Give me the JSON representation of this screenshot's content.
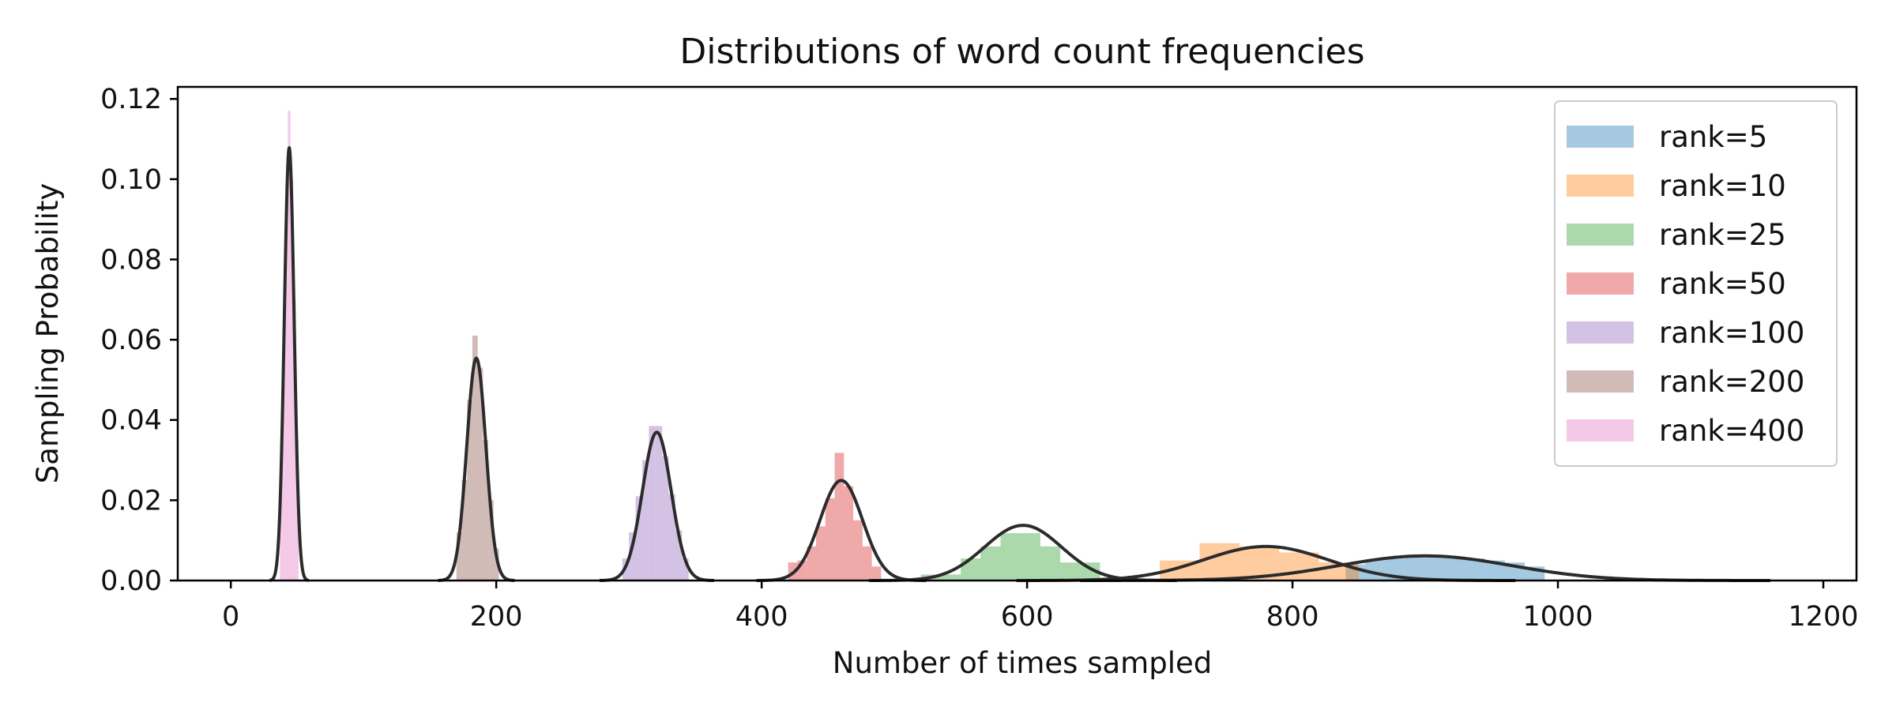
{
  "chart_data": {
    "type": "histogram",
    "title": "Distributions of word count frequencies",
    "xlabel": "Number of times sampled",
    "ylabel": "Sampling Probability",
    "xlim": [
      -40,
      1225
    ],
    "ylim": [
      0,
      0.123
    ],
    "x_ticks": [
      0,
      200,
      400,
      600,
      800,
      1000,
      1200
    ],
    "x_tick_labels": [
      "0",
      "200",
      "400",
      "600",
      "800",
      "1000",
      "1200"
    ],
    "y_ticks": [
      0,
      0.02,
      0.04,
      0.06,
      0.08,
      0.1,
      0.12
    ],
    "y_tick_labels": [
      "0.00",
      "0.02",
      "0.04",
      "0.06",
      "0.08",
      "0.10",
      "0.12"
    ],
    "grid": false,
    "legend_position": "top-right",
    "kde_color": "#2b2b2b",
    "series": [
      {
        "name": "rank=5",
        "color": "#1f77b4",
        "kde": {
          "mean": 900,
          "sd": 65
        },
        "bins": [
          [
            840,
            855,
            0.004
          ],
          [
            855,
            870,
            0.005
          ],
          [
            870,
            885,
            0.0055
          ],
          [
            885,
            900,
            0.006
          ],
          [
            900,
            915,
            0.006
          ],
          [
            915,
            930,
            0.006
          ],
          [
            930,
            945,
            0.0055
          ],
          [
            945,
            960,
            0.005
          ],
          [
            960,
            975,
            0.0045
          ],
          [
            975,
            990,
            0.0035
          ]
        ]
      },
      {
        "name": "rank=10",
        "color": "#ff7f0e",
        "kde": {
          "mean": 780,
          "sd": 47
        },
        "bins": [
          [
            700,
            730,
            0.005
          ],
          [
            730,
            760,
            0.0093
          ],
          [
            760,
            790,
            0.0085
          ],
          [
            790,
            820,
            0.007
          ],
          [
            820,
            850,
            0.0045
          ]
        ]
      },
      {
        "name": "rank=25",
        "color": "#2ca02c",
        "kde": {
          "mean": 597,
          "sd": 29
        },
        "bins": [
          [
            520,
            535,
            0.0015
          ],
          [
            535,
            550,
            0.0015
          ],
          [
            550,
            565,
            0.0055
          ],
          [
            565,
            580,
            0.0085
          ],
          [
            580,
            595,
            0.0118
          ],
          [
            595,
            610,
            0.0118
          ],
          [
            610,
            625,
            0.0085
          ],
          [
            625,
            640,
            0.0045
          ],
          [
            640,
            655,
            0.0045
          ]
        ]
      },
      {
        "name": "rank=50",
        "color": "#d62728",
        "kde": {
          "mean": 460,
          "sd": 16
        },
        "bins": [
          [
            420,
            427,
            0.0045
          ],
          [
            427,
            434,
            0.005
          ],
          [
            434,
            441,
            0.0085
          ],
          [
            441,
            448,
            0.0135
          ],
          [
            448,
            455,
            0.0205
          ],
          [
            455,
            462,
            0.0318
          ],
          [
            462,
            469,
            0.0235
          ],
          [
            469,
            476,
            0.015
          ],
          [
            476,
            483,
            0.0085
          ],
          [
            483,
            490,
            0.0035
          ]
        ]
      },
      {
        "name": "rank=100",
        "color": "#9467bd",
        "kde": {
          "mean": 321,
          "sd": 10.8
        },
        "bins": [
          [
            295,
            300,
            0.0055
          ],
          [
            300,
            305,
            0.012
          ],
          [
            305,
            310,
            0.021
          ],
          [
            310,
            315,
            0.03
          ],
          [
            315,
            320,
            0.0385
          ],
          [
            320,
            325,
            0.0385
          ],
          [
            325,
            330,
            0.031
          ],
          [
            330,
            335,
            0.0215
          ],
          [
            335,
            340,
            0.0125
          ],
          [
            340,
            345,
            0.0055
          ]
        ]
      },
      {
        "name": "rank=200",
        "color": "#8c564b",
        "kde": {
          "mean": 185,
          "sd": 7.2
        },
        "bins": [
          [
            170,
            174,
            0.012
          ],
          [
            174,
            178,
            0.025
          ],
          [
            178,
            182,
            0.045
          ],
          [
            182,
            186,
            0.061
          ],
          [
            186,
            190,
            0.053
          ],
          [
            190,
            194,
            0.035
          ],
          [
            194,
            198,
            0.02
          ],
          [
            198,
            202,
            0.008
          ]
        ]
      },
      {
        "name": "rank=400",
        "color": "#e377c2",
        "kde": {
          "mean": 44,
          "sd": 3.7
        },
        "bins": [
          [
            37,
            39,
            0.03
          ],
          [
            39,
            41,
            0.06
          ],
          [
            41,
            43,
            0.09
          ],
          [
            43,
            45,
            0.117
          ],
          [
            45,
            47,
            0.1
          ],
          [
            47,
            49,
            0.07
          ],
          [
            49,
            51,
            0.035
          ]
        ]
      }
    ]
  }
}
